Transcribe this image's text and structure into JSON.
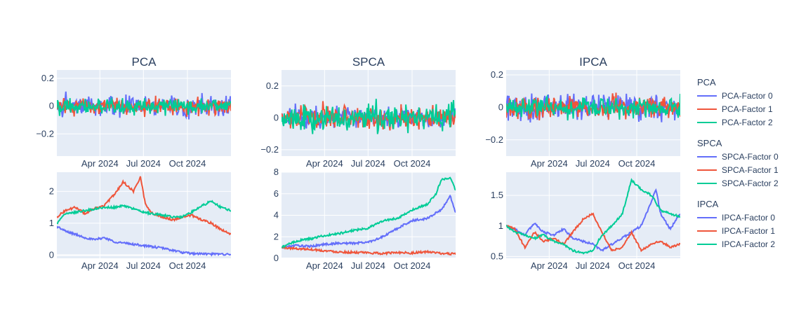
{
  "chart_data": {
    "type": "line",
    "x_range": [
      "2024-01-02",
      "2024-12-31"
    ],
    "x_ticks": [
      "2024-04-01",
      "2024-07-01",
      "2024-10-01"
    ],
    "x_tick_labels": [
      "Apr 2024",
      "Jul 2024",
      "Oct 2024"
    ],
    "colors": [
      "#636efa",
      "#EF553B",
      "#00cc96"
    ],
    "legend_placement": "right",
    "legend_groups": [
      {
        "title": "PCA",
        "entries": [
          "PCA-Factor 0",
          "PCA-Factor 1",
          "PCA-Factor 2"
        ]
      },
      {
        "title": "SPCA",
        "entries": [
          "SPCA-Factor 0",
          "SPCA-Factor 1",
          "SPCA-Factor 2"
        ]
      },
      {
        "title": "IPCA",
        "entries": [
          "IPCA-Factor 0",
          "IPCA-Factor 1",
          "IPCA-Factor 2"
        ]
      }
    ],
    "panels": [
      {
        "model": "PCA",
        "title": "PCA",
        "row": "returns",
        "ylim": [
          -0.36,
          0.26
        ],
        "yticks": [
          -0.2,
          0,
          0.2
        ],
        "ytick_labels": [
          "−0.2",
          "0",
          "0.2"
        ]
      },
      {
        "model": "SPCA",
        "title": "SPCA",
        "row": "returns",
        "ylim": [
          -0.24,
          0.3
        ],
        "yticks": [
          -0.2,
          0,
          0.2
        ],
        "ytick_labels": [
          "−0.2",
          "0",
          "0.2"
        ]
      },
      {
        "model": "IPCA",
        "title": "IPCA",
        "row": "returns",
        "ylim": [
          -0.3,
          0.23
        ],
        "yticks": [
          -0.2,
          0,
          0.2
        ],
        "ytick_labels": [
          "−0.2",
          "0",
          "0.2"
        ]
      },
      {
        "model": "PCA",
        "title": "",
        "row": "cumulative",
        "ylim": [
          -0.1,
          2.6
        ],
        "yticks": [
          0,
          1,
          2
        ],
        "ytick_labels": [
          "0",
          "1",
          "2"
        ],
        "series": [
          {
            "name": "PCA-Factor 0",
            "x": [
              "2024-01-02",
              "2024-01-20",
              "2024-02-10",
              "2024-03-01",
              "2024-03-20",
              "2024-04-10",
              "2024-05-01",
              "2024-05-20",
              "2024-06-10",
              "2024-07-01",
              "2024-07-20",
              "2024-08-10",
              "2024-09-01",
              "2024-09-20",
              "2024-10-10",
              "2024-11-01",
              "2024-11-20",
              "2024-12-10",
              "2024-12-31"
            ],
            "y": [
              0.9,
              0.75,
              0.65,
              0.55,
              0.48,
              0.55,
              0.42,
              0.38,
              0.34,
              0.3,
              0.26,
              0.22,
              0.15,
              0.08,
              0.05,
              0.04,
              0.03,
              0.03,
              0.03
            ]
          },
          {
            "name": "PCA-Factor 1",
            "x": [
              "2024-01-02",
              "2024-01-20",
              "2024-02-10",
              "2024-03-01",
              "2024-03-20",
              "2024-04-10",
              "2024-05-01",
              "2024-05-20",
              "2024-06-10",
              "2024-06-25",
              "2024-07-05",
              "2024-07-20",
              "2024-08-10",
              "2024-09-01",
              "2024-09-20",
              "2024-10-10",
              "2024-11-01",
              "2024-11-20",
              "2024-12-10",
              "2024-12-31"
            ],
            "y": [
              1.2,
              1.4,
              1.5,
              1.3,
              1.45,
              1.55,
              1.9,
              2.3,
              2.0,
              2.45,
              1.6,
              1.3,
              1.2,
              1.1,
              1.2,
              1.25,
              1.1,
              1.0,
              0.8,
              0.65
            ]
          },
          {
            "name": "PCA-Factor 2",
            "x": [
              "2024-01-02",
              "2024-01-20",
              "2024-02-10",
              "2024-03-01",
              "2024-03-20",
              "2024-04-10",
              "2024-05-01",
              "2024-05-20",
              "2024-06-10",
              "2024-07-01",
              "2024-07-20",
              "2024-08-10",
              "2024-09-01",
              "2024-09-20",
              "2024-10-10",
              "2024-11-01",
              "2024-11-20",
              "2024-12-10",
              "2024-12-31"
            ],
            "y": [
              1.0,
              1.3,
              1.35,
              1.4,
              1.45,
              1.5,
              1.5,
              1.55,
              1.45,
              1.35,
              1.3,
              1.25,
              1.2,
              1.2,
              1.35,
              1.55,
              1.7,
              1.5,
              1.4
            ]
          }
        ]
      },
      {
        "model": "SPCA",
        "title": "",
        "row": "cumulative",
        "ylim": [
          0,
          8
        ],
        "yticks": [
          0,
          2,
          4,
          6,
          8
        ],
        "ytick_labels": [
          "0",
          "2",
          "4",
          "6",
          "8"
        ],
        "series": [
          {
            "name": "SPCA-Factor 0",
            "x": [
              "2024-01-02",
              "2024-02-01",
              "2024-03-01",
              "2024-04-01",
              "2024-05-01",
              "2024-06-01",
              "2024-07-01",
              "2024-08-01",
              "2024-09-01",
              "2024-10-01",
              "2024-11-01",
              "2024-12-01",
              "2024-12-20",
              "2024-12-31"
            ],
            "y": [
              1.0,
              1.2,
              1.1,
              1.3,
              1.4,
              1.4,
              1.5,
              2.0,
              2.8,
              3.5,
              3.7,
              4.5,
              5.8,
              4.2
            ]
          },
          {
            "name": "SPCA-Factor 1",
            "x": [
              "2024-01-02",
              "2024-02-01",
              "2024-03-01",
              "2024-04-01",
              "2024-05-01",
              "2024-06-01",
              "2024-07-01",
              "2024-08-01",
              "2024-09-01",
              "2024-10-01",
              "2024-11-01",
              "2024-12-01",
              "2024-12-31"
            ],
            "y": [
              1.0,
              0.9,
              0.85,
              0.7,
              0.6,
              0.55,
              0.5,
              0.45,
              0.55,
              0.5,
              0.6,
              0.45,
              0.4
            ]
          },
          {
            "name": "SPCA-Factor 2",
            "x": [
              "2024-01-02",
              "2024-02-01",
              "2024-03-01",
              "2024-04-01",
              "2024-05-01",
              "2024-06-01",
              "2024-07-01",
              "2024-08-01",
              "2024-09-01",
              "2024-10-01",
              "2024-11-01",
              "2024-11-20",
              "2024-12-01",
              "2024-12-20",
              "2024-12-31"
            ],
            "y": [
              1.0,
              1.6,
              1.8,
              2.1,
              2.3,
              2.6,
              2.8,
              3.5,
              3.7,
              4.5,
              5.0,
              6.0,
              7.3,
              7.5,
              6.3
            ]
          }
        ]
      },
      {
        "model": "IPCA",
        "title": "",
        "row": "cumulative",
        "ylim": [
          0.47,
          1.88
        ],
        "yticks": [
          0.5,
          1,
          1.5
        ],
        "ytick_labels": [
          "0.5",
          "1",
          "1.5"
        ],
        "series": [
          {
            "name": "IPCA-Factor 0",
            "x": [
              "2024-01-02",
              "2024-01-20",
              "2024-02-10",
              "2024-03-01",
              "2024-03-20",
              "2024-04-10",
              "2024-05-01",
              "2024-05-20",
              "2024-06-10",
              "2024-07-01",
              "2024-07-20",
              "2024-08-10",
              "2024-09-01",
              "2024-09-20",
              "2024-10-10",
              "2024-11-01",
              "2024-11-10",
              "2024-11-20",
              "2024-12-10",
              "2024-12-31"
            ],
            "y": [
              1.0,
              0.95,
              0.85,
              1.05,
              0.9,
              0.85,
              0.95,
              0.8,
              0.75,
              0.7,
              0.6,
              0.7,
              0.8,
              0.9,
              1.0,
              1.4,
              1.6,
              1.2,
              0.95,
              1.2
            ]
          },
          {
            "name": "IPCA-Factor 1",
            "x": [
              "2024-01-02",
              "2024-01-20",
              "2024-02-10",
              "2024-03-01",
              "2024-03-20",
              "2024-04-10",
              "2024-05-01",
              "2024-05-20",
              "2024-06-10",
              "2024-07-01",
              "2024-07-20",
              "2024-08-10",
              "2024-09-01",
              "2024-09-20",
              "2024-10-10",
              "2024-11-01",
              "2024-11-20",
              "2024-12-10",
              "2024-12-31"
            ],
            "y": [
              1.0,
              0.95,
              0.65,
              0.9,
              0.75,
              0.8,
              0.7,
              0.9,
              1.1,
              1.2,
              0.9,
              0.6,
              0.65,
              0.9,
              0.6,
              0.7,
              0.75,
              0.65,
              0.7
            ]
          },
          {
            "name": "IPCA-Factor 2",
            "x": [
              "2024-01-02",
              "2024-01-20",
              "2024-02-10",
              "2024-03-01",
              "2024-03-20",
              "2024-04-10",
              "2024-05-01",
              "2024-05-20",
              "2024-06-10",
              "2024-07-01",
              "2024-07-20",
              "2024-08-10",
              "2024-09-01",
              "2024-09-20",
              "2024-10-10",
              "2024-11-01",
              "2024-11-20",
              "2024-12-10",
              "2024-12-31"
            ],
            "y": [
              1.0,
              0.9,
              0.85,
              0.8,
              0.85,
              0.75,
              0.7,
              0.6,
              0.55,
              0.6,
              0.85,
              1.0,
              1.2,
              1.75,
              1.6,
              1.5,
              1.25,
              1.2,
              1.15
            ]
          }
        ]
      }
    ]
  }
}
